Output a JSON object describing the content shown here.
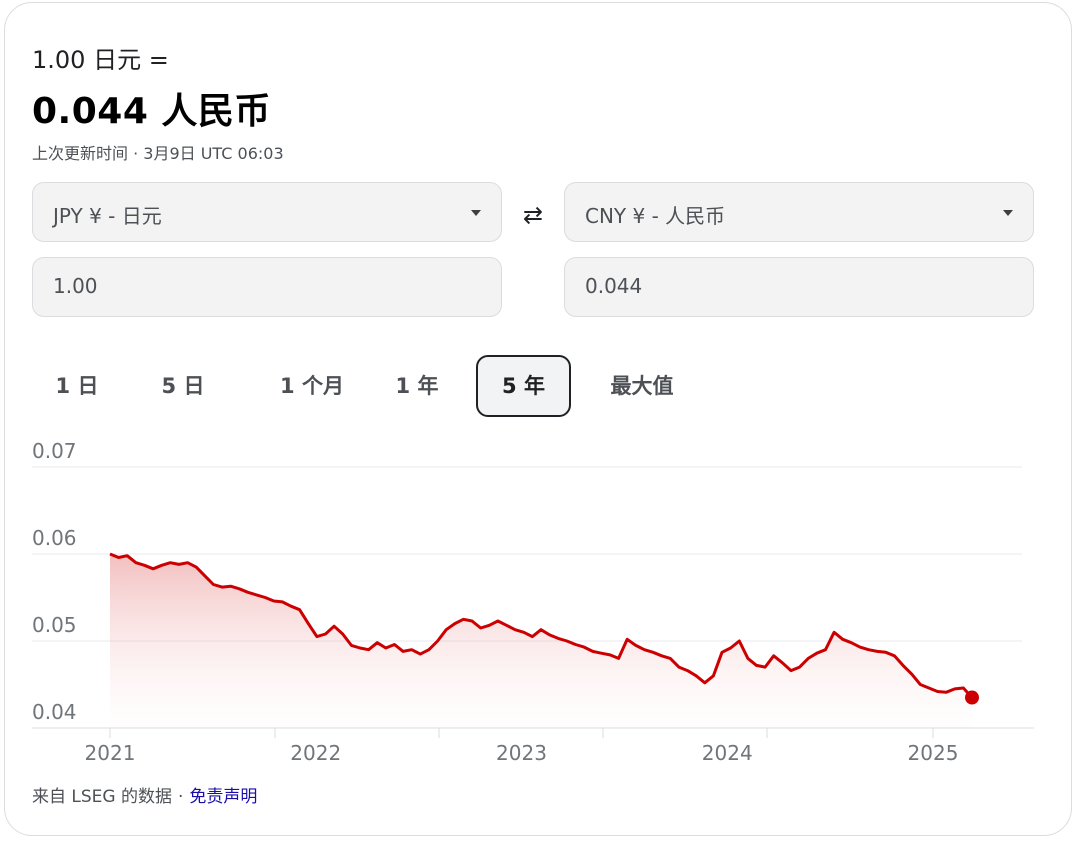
{
  "header": {
    "from_line": "1.00 日元 =",
    "result": "0.044 人民币",
    "updated": "上次更新时间 · 3月9日 UTC 06:03"
  },
  "converter": {
    "from_currency": "JPY ¥ - 日元",
    "to_currency": "CNY ¥ - 人民币",
    "from_amount": "1.00",
    "to_amount": "0.044",
    "swap_icon": "⇄"
  },
  "tabs": [
    {
      "label": "1 日",
      "active": false
    },
    {
      "label": "5 日",
      "active": false
    },
    {
      "label": "1 个月",
      "active": false
    },
    {
      "label": "1 年",
      "active": false
    },
    {
      "label": "5 年",
      "active": true
    },
    {
      "label": "最大值",
      "active": false
    }
  ],
  "footer": {
    "source": "来自 LSEG 的数据",
    "separator": "·",
    "disclaimer": "免责声明"
  },
  "colors": {
    "line": "#cc0000",
    "accent_link": "#1a0dab"
  },
  "chart_data": {
    "type": "area",
    "title": "",
    "xlabel": "",
    "ylabel": "",
    "ylim": [
      0.04,
      0.07
    ],
    "y_ticks": [
      "0.04",
      "0.05",
      "0.06",
      "0.07"
    ],
    "y_tick_values": [
      0.04,
      0.05,
      0.06,
      0.07
    ],
    "x_tick_labels": [
      "2021",
      "2022",
      "2023",
      "2024",
      "2025"
    ],
    "x_tick_values": [
      2021,
      2022,
      2023,
      2024,
      2025
    ],
    "grid": true,
    "series": [
      {
        "values": [
          [
            2021.0,
            0.06
          ],
          [
            2021.05,
            0.0596
          ],
          [
            2021.1,
            0.0598
          ],
          [
            2021.15,
            0.059
          ],
          [
            2021.2,
            0.0587
          ],
          [
            2021.25,
            0.0583
          ],
          [
            2021.3,
            0.0587
          ],
          [
            2021.35,
            0.059
          ],
          [
            2021.4,
            0.0588
          ],
          [
            2021.45,
            0.059
          ],
          [
            2021.5,
            0.0585
          ],
          [
            2021.55,
            0.0575
          ],
          [
            2021.6,
            0.0565
          ],
          [
            2021.65,
            0.0562
          ],
          [
            2021.7,
            0.0563
          ],
          [
            2021.75,
            0.056
          ],
          [
            2021.8,
            0.0556
          ],
          [
            2021.85,
            0.0553
          ],
          [
            2021.9,
            0.055
          ],
          [
            2021.95,
            0.0546
          ],
          [
            2022.0,
            0.0545
          ],
          [
            2022.05,
            0.054
          ],
          [
            2022.1,
            0.0536
          ],
          [
            2022.15,
            0.052
          ],
          [
            2022.2,
            0.0505
          ],
          [
            2022.25,
            0.0508
          ],
          [
            2022.3,
            0.0517
          ],
          [
            2022.35,
            0.0508
          ],
          [
            2022.4,
            0.0495
          ],
          [
            2022.45,
            0.0492
          ],
          [
            2022.5,
            0.049
          ],
          [
            2022.55,
            0.0498
          ],
          [
            2022.6,
            0.0492
          ],
          [
            2022.65,
            0.0496
          ],
          [
            2022.7,
            0.0488
          ],
          [
            2022.75,
            0.049
          ],
          [
            2022.8,
            0.0485
          ],
          [
            2022.85,
            0.049
          ],
          [
            2022.9,
            0.05
          ],
          [
            2022.95,
            0.0513
          ],
          [
            2023.0,
            0.052
          ],
          [
            2023.05,
            0.0525
          ],
          [
            2023.1,
            0.0523
          ],
          [
            2023.15,
            0.0515
          ],
          [
            2023.2,
            0.0518
          ],
          [
            2023.25,
            0.0523
          ],
          [
            2023.3,
            0.0518
          ],
          [
            2023.35,
            0.0513
          ],
          [
            2023.4,
            0.051
          ],
          [
            2023.45,
            0.0505
          ],
          [
            2023.5,
            0.0513
          ],
          [
            2023.55,
            0.0507
          ],
          [
            2023.6,
            0.0503
          ],
          [
            2023.65,
            0.05
          ],
          [
            2023.7,
            0.0496
          ],
          [
            2023.75,
            0.0493
          ],
          [
            2023.8,
            0.0488
          ],
          [
            2023.85,
            0.0486
          ],
          [
            2023.9,
            0.0484
          ],
          [
            2023.95,
            0.048
          ],
          [
            2024.0,
            0.0502
          ],
          [
            2024.05,
            0.0495
          ],
          [
            2024.1,
            0.049
          ],
          [
            2024.15,
            0.0487
          ],
          [
            2024.2,
            0.0483
          ],
          [
            2024.25,
            0.048
          ],
          [
            2024.3,
            0.047
          ],
          [
            2024.35,
            0.0466
          ],
          [
            2024.4,
            0.046
          ],
          [
            2024.45,
            0.0452
          ],
          [
            2024.5,
            0.046
          ],
          [
            2024.55,
            0.0487
          ],
          [
            2024.6,
            0.0492
          ],
          [
            2024.65,
            0.05
          ],
          [
            2024.7,
            0.048
          ],
          [
            2024.75,
            0.0472
          ],
          [
            2024.8,
            0.047
          ],
          [
            2024.85,
            0.0483
          ],
          [
            2024.9,
            0.0475
          ],
          [
            2024.95,
            0.0466
          ],
          [
            2025.0,
            0.047
          ],
          [
            2025.05,
            0.048
          ],
          [
            2025.1,
            0.0486
          ],
          [
            2025.15,
            0.049
          ],
          [
            2025.2,
            0.051
          ],
          [
            2025.25,
            0.0502
          ],
          [
            2025.3,
            0.0498
          ],
          [
            2025.35,
            0.0493
          ],
          [
            2025.4,
            0.049
          ],
          [
            2025.45,
            0.0488
          ],
          [
            2025.5,
            0.0487
          ],
          [
            2025.55,
            0.0483
          ],
          [
            2025.6,
            0.0472
          ],
          [
            2025.65,
            0.0462
          ],
          [
            2025.7,
            0.045
          ],
          [
            2025.75,
            0.0446
          ],
          [
            2025.8,
            0.0442
          ],
          [
            2025.85,
            0.0441
          ],
          [
            2025.9,
            0.0445
          ],
          [
            2025.95,
            0.0446
          ],
          [
            2026.0,
            0.0435
          ]
        ]
      }
    ]
  }
}
